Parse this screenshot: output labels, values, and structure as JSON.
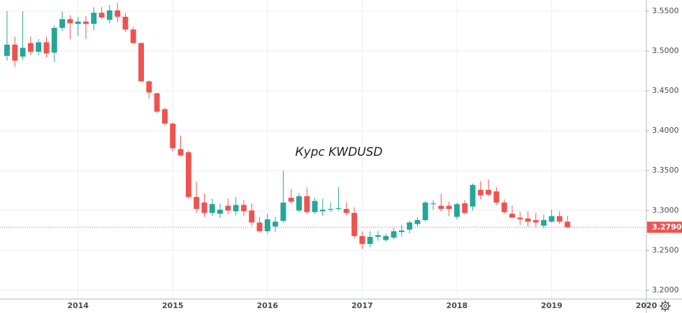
{
  "chart_data": {
    "type": "candlestick",
    "title": "Курс KWDUSD",
    "categories": [
      null,
      null,
      null,
      null,
      null,
      null,
      null,
      null,
      null,
      "2014",
      null,
      null,
      null,
      null,
      null,
      null,
      null,
      null,
      null,
      null,
      null,
      "2015",
      null,
      null,
      null,
      null,
      null,
      null,
      null,
      null,
      null,
      null,
      null,
      "2016",
      null,
      null,
      null,
      null,
      null,
      null,
      null,
      null,
      null,
      null,
      null,
      "2017",
      null,
      null,
      null,
      null,
      null,
      null,
      null,
      null,
      null,
      null,
      null,
      "2018",
      null,
      null,
      null,
      null,
      null,
      null,
      null,
      null,
      null,
      null,
      null,
      "2019",
      null,
      null,
      null,
      null,
      null,
      null,
      null,
      null,
      null,
      null,
      null,
      "2020"
    ],
    "open": [
      3.494,
      3.508,
      3.493,
      3.51,
      3.499,
      3.511,
      3.498,
      3.529,
      3.54,
      3.534,
      3.537,
      3.534,
      3.548,
      3.539,
      3.551,
      3.543,
      3.527,
      3.51,
      3.462,
      3.447,
      3.427,
      3.409,
      3.377,
      3.373,
      3.317,
      3.31,
      3.297,
      3.296,
      3.306,
      3.299,
      3.307,
      3.3,
      3.285,
      3.274,
      3.28,
      3.287,
      3.316,
      3.3,
      3.318,
      3.298,
      3.299,
      3.301,
      3.302,
      3.302,
      3.297,
      3.268,
      3.258,
      3.267,
      3.263,
      3.266,
      3.273,
      3.276,
      3.283,
      3.288,
      3.308,
      3.306,
      3.306,
      3.292,
      3.309,
      3.305,
      3.326,
      3.326,
      3.324,
      3.31,
      3.296,
      3.291,
      3.29,
      3.288,
      3.281,
      3.286,
      3.293,
      3.286,
      null,
      null,
      null,
      null,
      null,
      null,
      null,
      null,
      null,
      null
    ],
    "high": [
      3.55,
      3.518,
      3.55,
      3.518,
      3.515,
      3.518,
      3.532,
      3.55,
      3.545,
      3.543,
      3.544,
      3.555,
      3.555,
      3.558,
      3.56,
      3.548,
      3.53,
      3.511,
      3.463,
      3.448,
      3.429,
      3.41,
      3.394,
      3.375,
      3.336,
      3.321,
      3.315,
      3.309,
      3.315,
      3.317,
      3.313,
      3.309,
      3.292,
      3.296,
      3.292,
      3.35,
      3.327,
      3.322,
      3.329,
      3.316,
      3.315,
      3.31,
      3.329,
      3.31,
      3.304,
      3.274,
      3.274,
      3.274,
      3.271,
      3.278,
      3.282,
      3.287,
      3.292,
      3.312,
      3.313,
      3.321,
      3.311,
      3.31,
      3.313,
      3.334,
      3.337,
      3.339,
      3.329,
      3.314,
      3.306,
      3.298,
      3.299,
      3.297,
      3.295,
      3.301,
      3.299,
      3.293,
      null,
      null,
      null,
      null,
      null,
      null,
      null,
      null,
      null,
      null
    ],
    "low": [
      3.488,
      3.48,
      3.489,
      3.495,
      3.495,
      3.492,
      3.486,
      3.525,
      3.515,
      3.519,
      3.515,
      3.526,
      3.54,
      3.535,
      3.536,
      3.524,
      3.509,
      3.461,
      3.44,
      3.422,
      3.407,
      3.374,
      3.368,
      3.315,
      3.297,
      3.292,
      3.293,
      3.291,
      3.295,
      3.294,
      3.293,
      3.281,
      3.272,
      3.271,
      3.273,
      3.285,
      3.308,
      3.298,
      3.296,
      3.296,
      3.293,
      3.298,
      3.3,
      3.294,
      3.265,
      3.252,
      3.254,
      3.262,
      3.261,
      3.264,
      3.267,
      3.271,
      3.28,
      3.286,
      3.301,
      3.299,
      3.293,
      3.289,
      3.295,
      3.3,
      3.314,
      3.318,
      3.307,
      3.296,
      3.291,
      3.282,
      3.28,
      3.279,
      3.278,
      3.285,
      3.283,
      3.278,
      null,
      null,
      null,
      null,
      null,
      null,
      null,
      null,
      null,
      null
    ],
    "close": [
      3.508,
      3.488,
      3.504,
      3.499,
      3.511,
      3.497,
      3.529,
      3.54,
      3.535,
      3.537,
      3.534,
      3.548,
      3.542,
      3.551,
      3.543,
      3.527,
      3.51,
      3.462,
      3.448,
      3.424,
      3.409,
      3.378,
      3.369,
      3.317,
      3.302,
      3.297,
      3.308,
      3.301,
      3.3,
      3.307,
      3.299,
      3.285,
      3.274,
      3.289,
      3.286,
      3.31,
      3.311,
      3.318,
      3.298,
      3.312,
      3.301,
      3.302,
      3.303,
      3.297,
      3.268,
      3.258,
      3.267,
      3.269,
      3.268,
      3.274,
      3.275,
      3.285,
      3.288,
      3.31,
      3.309,
      3.302,
      3.302,
      3.308,
      3.297,
      3.332,
      3.319,
      3.32,
      3.31,
      3.298,
      3.291,
      3.289,
      3.286,
      3.285,
      3.288,
      3.293,
      3.286,
      3.279,
      null,
      null,
      null,
      null,
      null,
      null,
      null,
      null,
      null,
      null
    ],
    "up_color": "#26a69a",
    "down_color": "#ef5350",
    "ylim": [
      3.189,
      3.564
    ],
    "yticks": [
      {
        "value": 3.2,
        "label": "3.2000"
      },
      {
        "value": 3.25,
        "label": "3.2500"
      },
      {
        "value": 3.3,
        "label": "3.3000"
      },
      {
        "value": 3.35,
        "label": "3.3500"
      },
      {
        "value": 3.4,
        "label": "3.4000"
      },
      {
        "value": 3.45,
        "label": "3.4500"
      },
      {
        "value": 3.5,
        "label": "3.5000"
      },
      {
        "value": 3.55,
        "label": "3.5500"
      }
    ],
    "last_price": {
      "value": 3.279,
      "label": "3.2790"
    },
    "grid": true
  }
}
